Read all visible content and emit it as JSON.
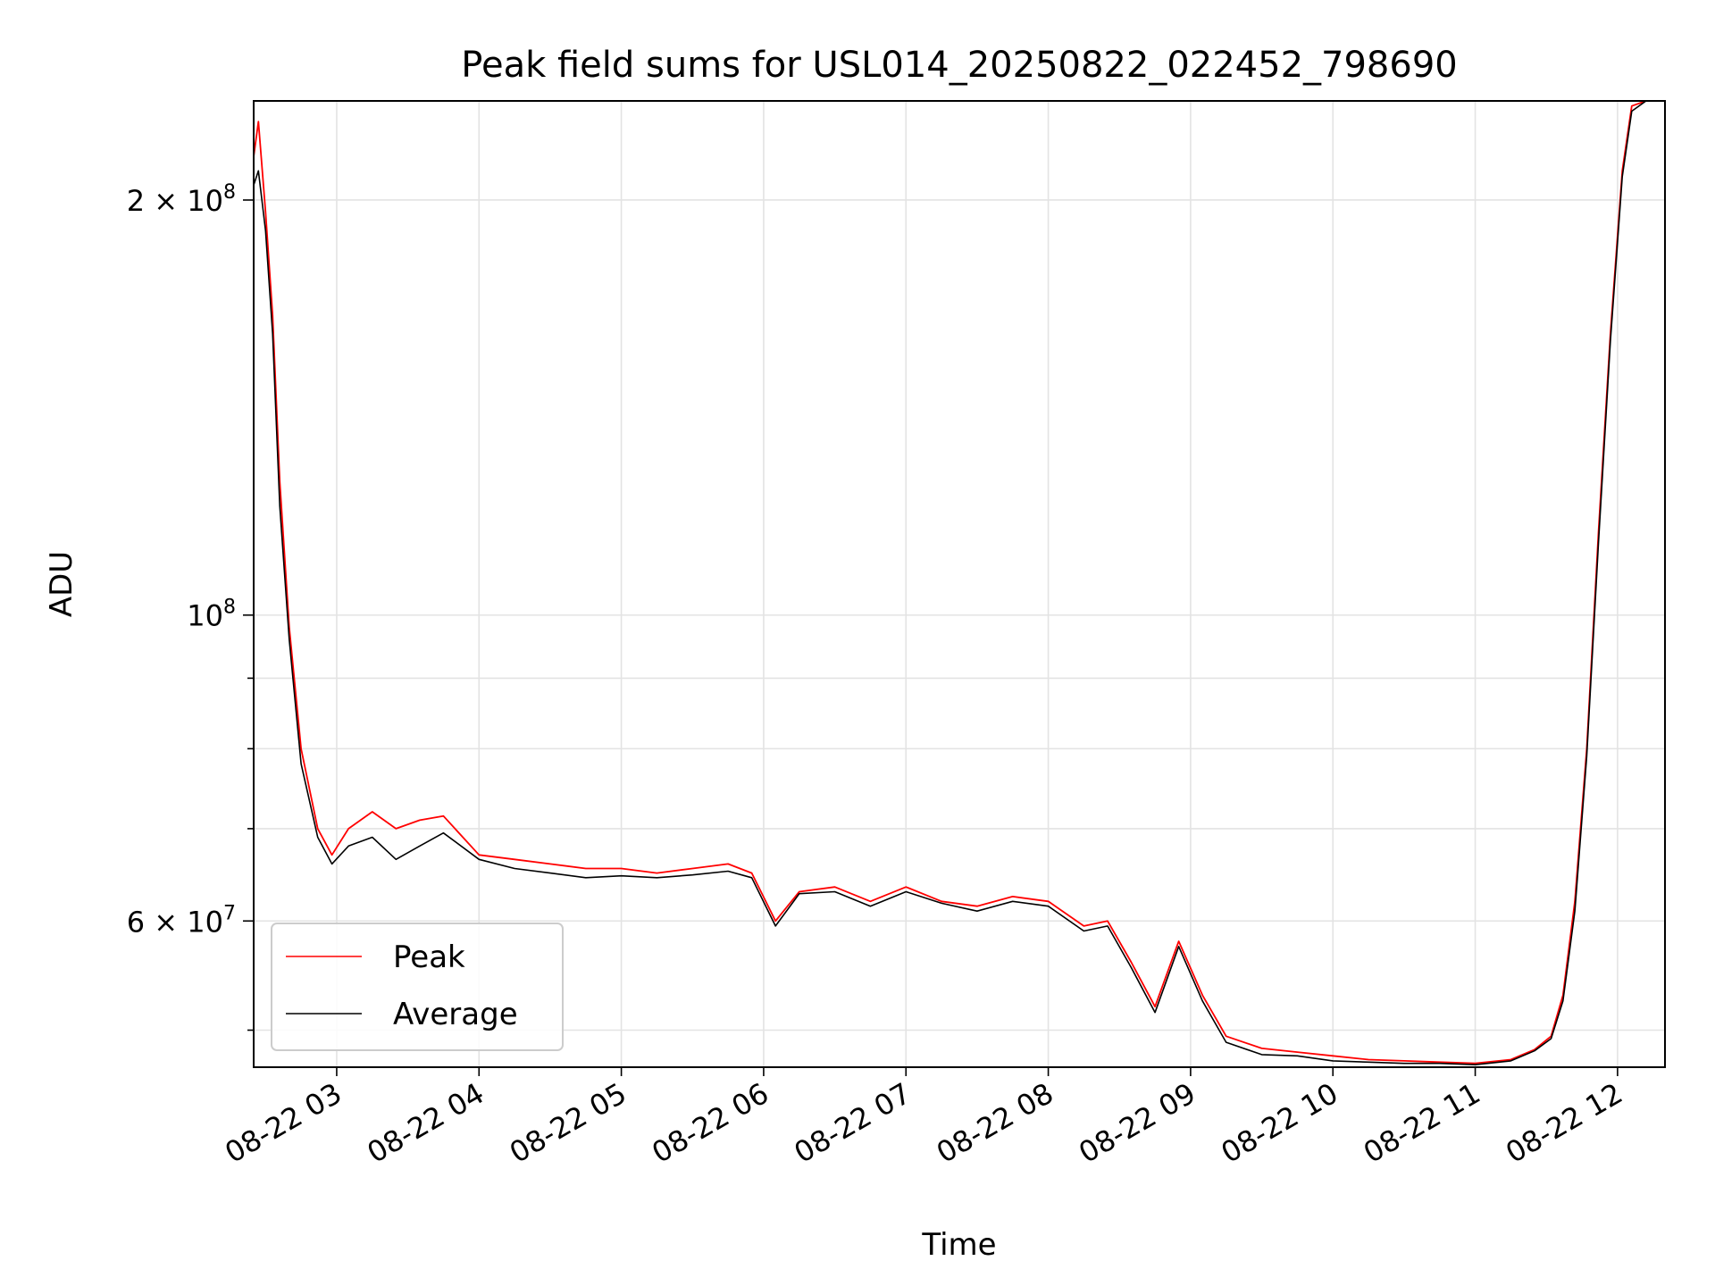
{
  "chart_data": {
    "type": "line",
    "title": "Peak field sums for USL014_20250822_022452_798690",
    "xlabel": "Time",
    "ylabel": "ADU",
    "yscale": "log",
    "grid": true,
    "legend_position": "lower-left",
    "xlim": [
      "08-22 02:25",
      "08-22 12:20"
    ],
    "ylim": [
      47000000,
      236000000
    ],
    "x_ticks": [
      "08-22 03",
      "08-22 04",
      "08-22 05",
      "08-22 06",
      "08-22 07",
      "08-22 08",
      "08-22 09",
      "08-22 10",
      "08-22 11",
      "08-22 12"
    ],
    "y_ticks": [
      {
        "value": 200000000,
        "base": "2 × 10",
        "exp": "8"
      },
      {
        "value": 100000000,
        "base": "10",
        "exp": "8"
      },
      {
        "value": 60000000,
        "base": "6 × 10",
        "exp": "7"
      }
    ],
    "y_minor_ticks": [
      50000000,
      70000000,
      80000000,
      90000000
    ],
    "series": [
      {
        "name": "Peak",
        "color": "#ff0000",
        "x": [
          "08-22 02:25",
          "08-22 02:27",
          "08-22 02:30",
          "08-22 02:33",
          "08-22 02:36",
          "08-22 02:40",
          "08-22 02:45",
          "08-22 02:52",
          "08-22 02:58",
          "08-22 03:05",
          "08-22 03:15",
          "08-22 03:25",
          "08-22 03:35",
          "08-22 03:45",
          "08-22 04:00",
          "08-22 04:15",
          "08-22 04:30",
          "08-22 04:45",
          "08-22 05:00",
          "08-22 05:15",
          "08-22 05:30",
          "08-22 05:45",
          "08-22 05:55",
          "08-22 06:05",
          "08-22 06:15",
          "08-22 06:30",
          "08-22 06:45",
          "08-22 07:00",
          "08-22 07:15",
          "08-22 07:30",
          "08-22 07:45",
          "08-22 08:00",
          "08-22 08:15",
          "08-22 08:25",
          "08-22 08:35",
          "08-22 08:45",
          "08-22 08:55",
          "08-22 09:05",
          "08-22 09:15",
          "08-22 09:30",
          "08-22 09:45",
          "08-22 10:00",
          "08-22 10:15",
          "08-22 10:30",
          "08-22 10:45",
          "08-22 11:00",
          "08-22 11:15",
          "08-22 11:25",
          "08-22 11:32",
          "08-22 11:37",
          "08-22 11:42",
          "08-22 11:47",
          "08-22 11:52",
          "08-22 11:57",
          "08-22 12:02",
          "08-22 12:06",
          "08-22 12:12",
          "08-22 12:20"
        ],
        "y": [
          215000000,
          228000000,
          196000000,
          165000000,
          125000000,
          98000000,
          80000000,
          70000000,
          67000000,
          70000000,
          72000000,
          70000000,
          71000000,
          71500000,
          67000000,
          66500000,
          66000000,
          65500000,
          65500000,
          65000000,
          65500000,
          66000000,
          65000000,
          60000000,
          63000000,
          63500000,
          62000000,
          63500000,
          62000000,
          61500000,
          62500000,
          62000000,
          59500000,
          60000000,
          56000000,
          52000000,
          58000000,
          53000000,
          49500000,
          48500000,
          48200000,
          47900000,
          47600000,
          47500000,
          47400000,
          47300000,
          47600000,
          48400000,
          49500000,
          53000000,
          62000000,
          80000000,
          115000000,
          160000000,
          210000000,
          234000000,
          236000000,
          236000000
        ]
      },
      {
        "name": "Average",
        "color": "#000000",
        "x": [
          "08-22 02:25",
          "08-22 02:27",
          "08-22 02:30",
          "08-22 02:33",
          "08-22 02:36",
          "08-22 02:40",
          "08-22 02:45",
          "08-22 02:52",
          "08-22 02:58",
          "08-22 03:05",
          "08-22 03:15",
          "08-22 03:25",
          "08-22 03:35",
          "08-22 03:45",
          "08-22 04:00",
          "08-22 04:15",
          "08-22 04:30",
          "08-22 04:45",
          "08-22 05:00",
          "08-22 05:15",
          "08-22 05:30",
          "08-22 05:45",
          "08-22 05:55",
          "08-22 06:05",
          "08-22 06:15",
          "08-22 06:30",
          "08-22 06:45",
          "08-22 07:00",
          "08-22 07:15",
          "08-22 07:30",
          "08-22 07:45",
          "08-22 08:00",
          "08-22 08:15",
          "08-22 08:25",
          "08-22 08:35",
          "08-22 08:45",
          "08-22 08:55",
          "08-22 09:05",
          "08-22 09:15",
          "08-22 09:30",
          "08-22 09:45",
          "08-22 10:00",
          "08-22 10:15",
          "08-22 10:30",
          "08-22 10:45",
          "08-22 11:00",
          "08-22 11:15",
          "08-22 11:25",
          "08-22 11:32",
          "08-22 11:37",
          "08-22 11:42",
          "08-22 11:47",
          "08-22 11:52",
          "08-22 11:57",
          "08-22 12:02",
          "08-22 12:06",
          "08-22 12:12",
          "08-22 12:20"
        ],
        "y": [
          205000000,
          210000000,
          190000000,
          160000000,
          120000000,
          96000000,
          78000000,
          69000000,
          66000000,
          68000000,
          69000000,
          66500000,
          68000000,
          69500000,
          66500000,
          65500000,
          65000000,
          64500000,
          64700000,
          64500000,
          64800000,
          65200000,
          64500000,
          59500000,
          62800000,
          63000000,
          61500000,
          63000000,
          61800000,
          61000000,
          62000000,
          61500000,
          59000000,
          59500000,
          55500000,
          51500000,
          57500000,
          52500000,
          49000000,
          48000000,
          47900000,
          47500000,
          47400000,
          47300000,
          47300000,
          47200000,
          47500000,
          48300000,
          49300000,
          52500000,
          61000000,
          79000000,
          113000000,
          158000000,
          208000000,
          232000000,
          236000000,
          236000000
        ]
      }
    ]
  }
}
